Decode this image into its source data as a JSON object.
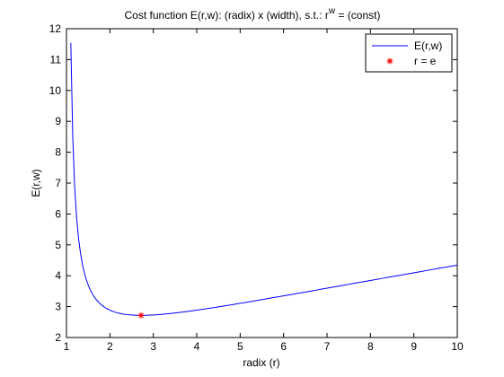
{
  "chart_data": {
    "type": "line",
    "title_main": "Cost function E(r,w): (radix) x (width), s.t.: r",
    "title_sup": "w",
    "title_tail": " = (const)",
    "xlabel": "radix (r)",
    "ylabel": "E(r,w)",
    "xlim": [
      1,
      10
    ],
    "ylim": [
      2,
      12
    ],
    "xticks": [
      1,
      2,
      3,
      4,
      5,
      6,
      7,
      8,
      9,
      10
    ],
    "yticks": [
      2,
      3,
      4,
      5,
      6,
      7,
      8,
      9,
      10,
      11,
      12
    ],
    "grid": false,
    "legend_position": "top-right",
    "series": [
      {
        "name": "E(r,w)",
        "kind": "line",
        "color": "#0000ff",
        "formula_note": "y = r / ln(r)",
        "x_start": 1.1,
        "x_end": 10,
        "samples": 200
      },
      {
        "name": "r = e",
        "kind": "marker",
        "marker": "*",
        "color": "#ff0000",
        "x": [
          2.718
        ],
        "y": [
          2.718
        ]
      }
    ]
  }
}
